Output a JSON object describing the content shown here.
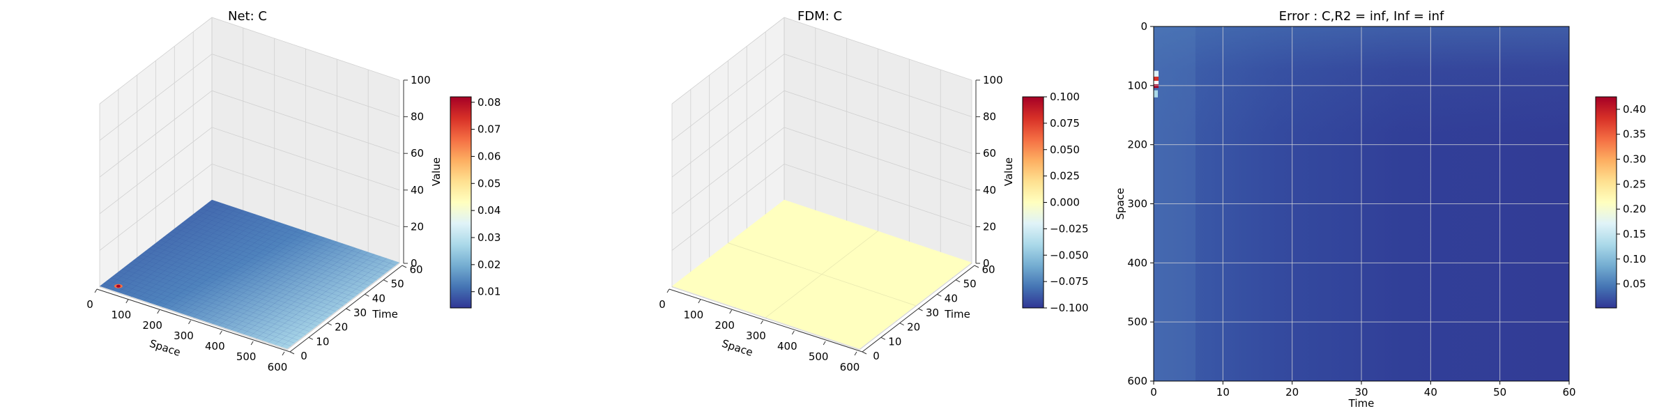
{
  "chart_data": [
    {
      "type": "surface3d",
      "title": "Net: C",
      "xlabel": "Space",
      "ylabel": "Time",
      "zlabel": "Value",
      "xlim": [
        0,
        600
      ],
      "ylim": [
        0,
        60
      ],
      "zlim": [
        0,
        100
      ],
      "xticks": [
        0,
        100,
        200,
        300,
        400,
        500,
        600
      ],
      "yticks": [
        0,
        10,
        20,
        30,
        40,
        50,
        60
      ],
      "zticks": [
        0,
        20,
        40,
        60,
        80,
        100
      ],
      "colormap": "RdYlBu_r",
      "colorbar": {
        "min": 0.004,
        "max": 0.082,
        "ticks": [
          0.01,
          0.02,
          0.03,
          0.04,
          0.05,
          0.06,
          0.07,
          0.08
        ],
        "tick_labels": [
          "0.01",
          "0.02",
          "0.03",
          "0.04",
          "0.05",
          "0.06",
          "0.07",
          "0.08"
        ]
      }
    },
    {
      "type": "surface3d",
      "title": "FDM: C",
      "xlabel": "Space",
      "ylabel": "Time",
      "zlabel": "Value",
      "xlim": [
        0,
        600
      ],
      "ylim": [
        0,
        60
      ],
      "zlim": [
        0,
        100
      ],
      "xticks": [
        0,
        100,
        200,
        300,
        400,
        500,
        600
      ],
      "yticks": [
        0,
        10,
        20,
        30,
        40,
        50,
        60
      ],
      "zticks": [
        0,
        20,
        40,
        60,
        80,
        100
      ],
      "colormap": "RdYlBu_r",
      "surface_value": 0.0,
      "colorbar": {
        "min": -0.1,
        "max": 0.1,
        "ticks": [
          -0.1,
          -0.075,
          -0.05,
          -0.025,
          0.0,
          0.025,
          0.05,
          0.075,
          0.1
        ],
        "tick_labels": [
          "−0.100",
          "−0.075",
          "−0.050",
          "−0.025",
          "0.000",
          "0.025",
          "0.050",
          "0.075",
          "0.100"
        ]
      }
    },
    {
      "type": "heatmap",
      "title": "Error : C,R2 = inf, Inf = inf",
      "xlabel": "Time",
      "ylabel": "Space",
      "xlim": [
        0,
        60
      ],
      "ylim": [
        600,
        0
      ],
      "xticks": [
        0,
        10,
        20,
        30,
        40,
        50,
        60
      ],
      "yticks": [
        0,
        100,
        200,
        300,
        400,
        500,
        600
      ],
      "grid": true,
      "colormap": "RdYlBu_r",
      "colorbar": {
        "min": 0.002,
        "max": 0.425,
        "ticks": [
          0.05,
          0.1,
          0.15,
          0.2,
          0.25,
          0.3,
          0.35,
          0.4
        ],
        "tick_labels": [
          "0.05",
          "0.10",
          "0.15",
          "0.20",
          "0.25",
          "0.30",
          "0.35",
          "0.40"
        ]
      }
    }
  ]
}
